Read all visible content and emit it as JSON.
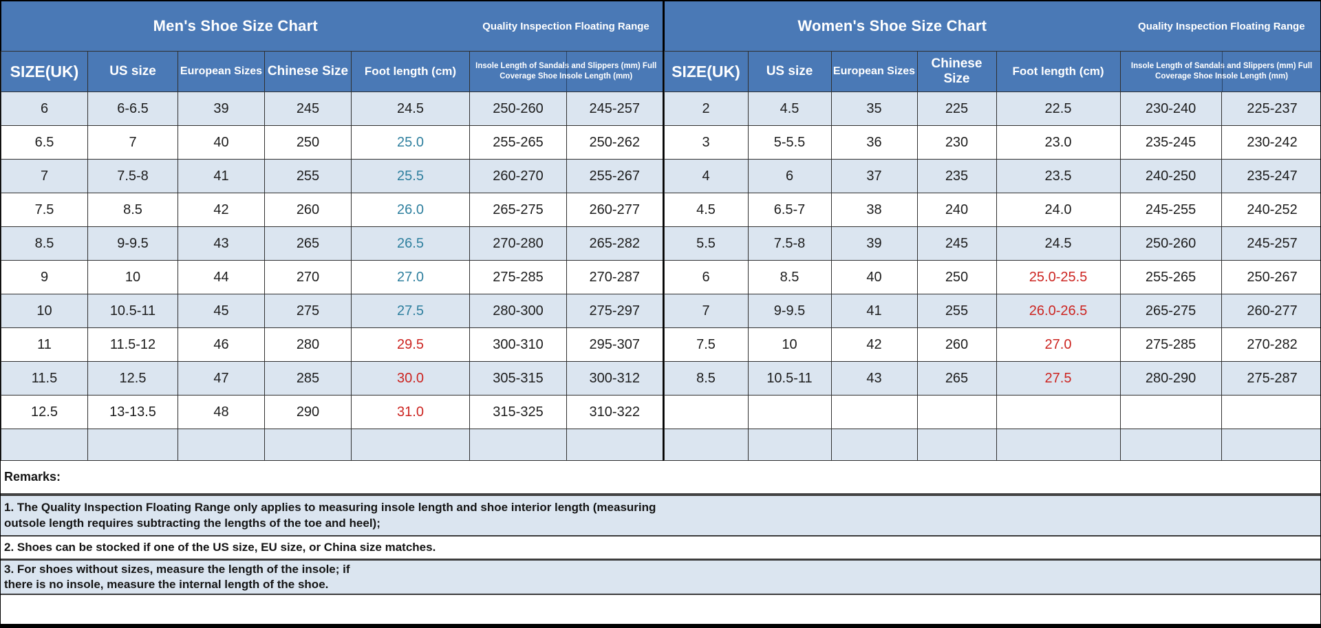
{
  "colors": {
    "header_blue": "#4a79b6",
    "band_light_blue": "#dbe5f0",
    "teal_value": "#2e7f9e",
    "red_value": "#cc2420",
    "border_dark": "#2f2f2f",
    "text_dark": "#1c1c1c",
    "bottom_bar_black": "#000000"
  },
  "sections": [
    {
      "title": "Men's Shoe Size Chart",
      "subtitle": "Quality Inspection Floating Range",
      "columns": [
        "SIZE(UK)",
        "US size",
        "European Sizes",
        "Chinese Size",
        "Foot length (cm)",
        "Insole Length of Sandals and Slippers (mm) Full\nCoverage Shoe Insole Length (mm)"
      ],
      "rows": [
        {
          "values": [
            "6",
            "6-6.5",
            "39",
            "245",
            "24.5",
            "250-260",
            "245-257"
          ],
          "foot_color": "dark"
        },
        {
          "values": [
            "6.5",
            "7",
            "40",
            "250",
            "25.0",
            "255-265",
            "250-262"
          ],
          "foot_color": "teal"
        },
        {
          "values": [
            "7",
            "7.5-8",
            "41",
            "255",
            "25.5",
            "260-270",
            "255-267"
          ],
          "foot_color": "teal"
        },
        {
          "values": [
            "7.5",
            "8.5",
            "42",
            "260",
            "26.0",
            "265-275",
            "260-277"
          ],
          "foot_color": "teal"
        },
        {
          "values": [
            "8.5",
            "9-9.5",
            "43",
            "265",
            "26.5",
            "270-280",
            "265-282"
          ],
          "foot_color": "teal"
        },
        {
          "values": [
            "9",
            "10",
            "44",
            "270",
            "27.0",
            "275-285",
            "270-287"
          ],
          "foot_color": "teal"
        },
        {
          "values": [
            "10",
            "10.5-11",
            "45",
            "275",
            "27.5",
            "280-300",
            "275-297"
          ],
          "foot_color": "teal"
        },
        {
          "values": [
            "11",
            "11.5-12",
            "46",
            "280",
            "29.5",
            "300-310",
            "295-307"
          ],
          "foot_color": "red"
        },
        {
          "values": [
            "11.5",
            "12.5",
            "47",
            "285",
            "30.0",
            "305-315",
            "300-312"
          ],
          "foot_color": "red"
        },
        {
          "values": [
            "12.5",
            "13-13.5",
            "48",
            "290",
            "31.0",
            "315-325",
            "310-322"
          ],
          "foot_color": "red"
        },
        {
          "values": [
            "",
            "",
            "",
            "",
            "",
            "",
            ""
          ],
          "foot_color": "dark"
        }
      ]
    },
    {
      "title": "Women's Shoe Size Chart",
      "subtitle": "Quality Inspection Floating Range",
      "columns": [
        "SIZE(UK)",
        "US size",
        "European Sizes",
        "Chinese Size",
        "Foot length (cm)",
        "Insole Length of Sandals and Slippers (mm) Full\nCoverage Shoe Insole Length (mm)"
      ],
      "rows": [
        {
          "values": [
            "2",
            "4.5",
            "35",
            "225",
            "22.5",
            "230-240",
            "225-237"
          ],
          "foot_color": "dark"
        },
        {
          "values": [
            "3",
            "5-5.5",
            "36",
            "230",
            "23.0",
            "235-245",
            "230-242"
          ],
          "foot_color": "dark"
        },
        {
          "values": [
            "4",
            "6",
            "37",
            "235",
            "23.5",
            "240-250",
            "235-247"
          ],
          "foot_color": "dark"
        },
        {
          "values": [
            "4.5",
            "6.5-7",
            "38",
            "240",
            "24.0",
            "245-255",
            "240-252"
          ],
          "foot_color": "dark"
        },
        {
          "values": [
            "5.5",
            "7.5-8",
            "39",
            "245",
            "24.5",
            "250-260",
            "245-257"
          ],
          "foot_color": "dark"
        },
        {
          "values": [
            "6",
            "8.5",
            "40",
            "250",
            "25.0-25.5",
            "255-265",
            "250-267"
          ],
          "foot_color": "red"
        },
        {
          "values": [
            "7",
            "9-9.5",
            "41",
            "255",
            "26.0-26.5",
            "265-275",
            "260-277"
          ],
          "foot_color": "red"
        },
        {
          "values": [
            "7.5",
            "10",
            "42",
            "260",
            "27.0",
            "275-285",
            "270-282"
          ],
          "foot_color": "red"
        },
        {
          "values": [
            "8.5",
            "10.5-11",
            "43",
            "265",
            "27.5",
            "280-290",
            "275-287"
          ],
          "foot_color": "red"
        },
        {
          "values": [
            "",
            "",
            "",
            "",
            "",
            "",
            ""
          ],
          "foot_color": "dark"
        },
        {
          "values": [
            "",
            "",
            "",
            "",
            "",
            "",
            ""
          ],
          "foot_color": "dark"
        }
      ]
    }
  ],
  "remarks": {
    "label": "Remarks:",
    "items": [
      {
        "text": "1. The Quality Inspection Floating Range only applies to measuring insole length and shoe interior length (measuring\noutsole length requires subtracting the lengths of the toe and heel);",
        "highlighted": true
      },
      {
        "text": "2. Shoes can be stocked if one of the US size, EU size, or China size matches.",
        "highlighted": false
      },
      {
        "text": "3. For shoes without sizes, measure the length of the insole; if\nthere is no insole, measure the internal length of the shoe.",
        "highlighted": true
      }
    ]
  }
}
